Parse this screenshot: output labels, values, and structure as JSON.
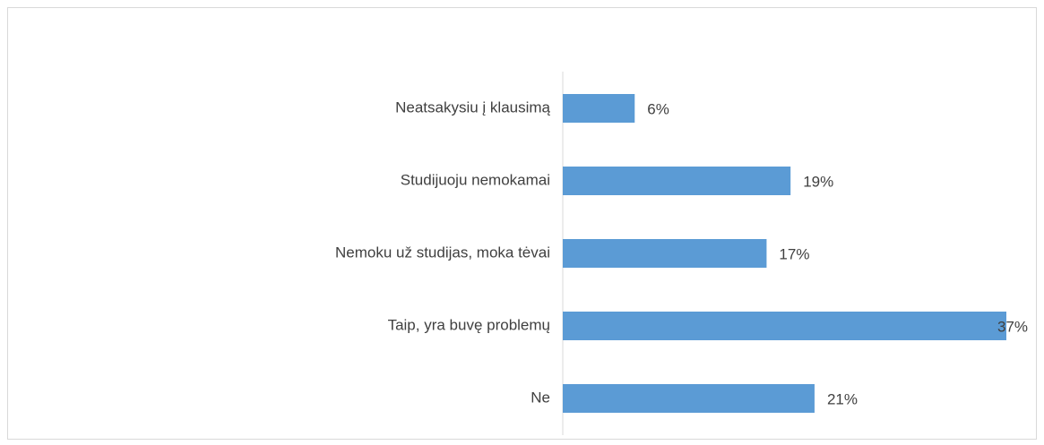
{
  "chart_data": {
    "type": "hbar",
    "categories": [
      "Neatsakysiu į klausimą",
      "Studijuoju nemokamai",
      "Nemoku už studijas, moka tėvai",
      "Taip, yra buvę problemų",
      "Ne"
    ],
    "values": [
      6,
      19,
      17,
      37,
      21
    ],
    "value_labels": [
      "6%",
      "19%",
      "17%",
      "37%",
      "21%"
    ],
    "color": "#5b9bd5",
    "xlim": [
      0,
      37
    ]
  }
}
